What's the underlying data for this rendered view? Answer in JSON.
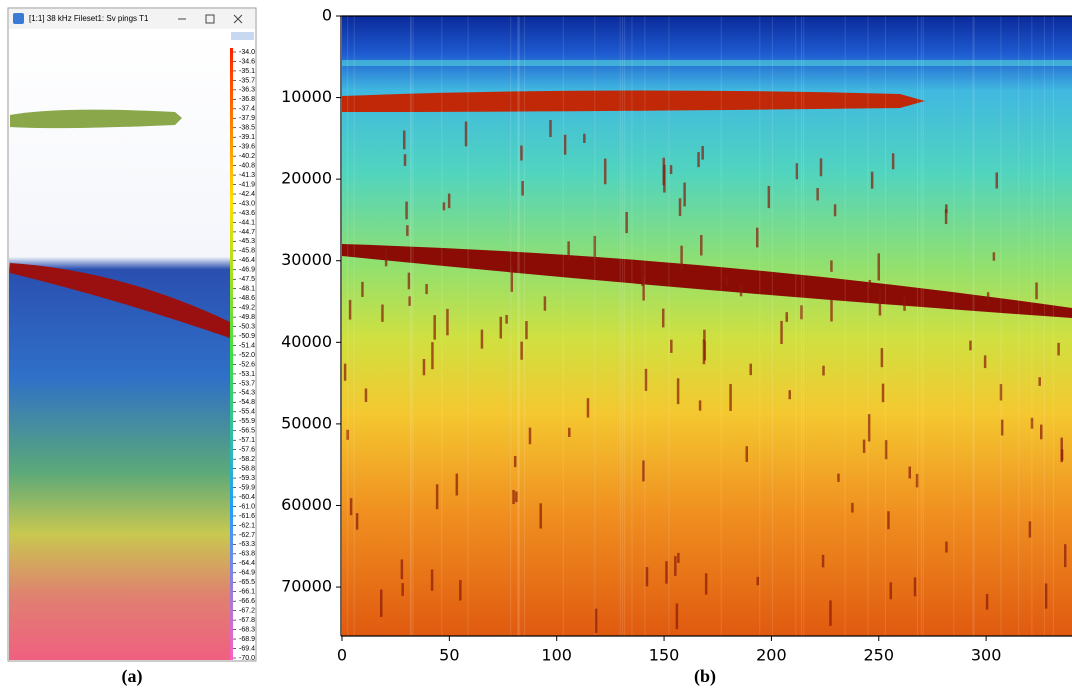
{
  "panel_a": {
    "window_title": "[1:1] 38 kHz Fileset1: Sv pings T1",
    "scale_labels": [
      "-34.0",
      "-34.6",
      "-35.1",
      "-35.7",
      "-36.3",
      "-36.8",
      "-37.4",
      "-37.9",
      "-38.5",
      "-39.1",
      "-39.6",
      "-40.2",
      "-40.8",
      "-41.3",
      "-41.9",
      "-42.4",
      "-43.0",
      "-43.6",
      "-44.1",
      "-44.7",
      "-45.3",
      "-45.8",
      "-46.4",
      "-46.9",
      "-47.5",
      "-48.1",
      "-48.6",
      "-49.2",
      "-49.8",
      "-50.3",
      "-50.9",
      "-51.4",
      "-52.0",
      "-52.6",
      "-53.1",
      "-53.7",
      "-54.3",
      "-54.8",
      "-55.4",
      "-55.9",
      "-56.5",
      "-57.1",
      "-57.6",
      "-58.2",
      "-58.8",
      "-59.3",
      "-59.9",
      "-60.4",
      "-61.0",
      "-61.6",
      "-62.1",
      "-62.7",
      "-63.3",
      "-63.8",
      "-64.4",
      "-64.9",
      "-65.5",
      "-66.1",
      "-66.6",
      "-67.2",
      "-67.8",
      "-68.3",
      "-68.9",
      "-69.4",
      "-70.0"
    ],
    "caption": "(a)"
  },
  "chart_data": {
    "type": "heatmap",
    "caption": "(b)",
    "xlim": [
      0,
      340
    ],
    "xticks": [
      0,
      50,
      100,
      150,
      200,
      250,
      300
    ],
    "ylim": [
      0,
      76000
    ],
    "yticks": [
      0,
      10000,
      20000,
      30000,
      40000,
      50000,
      60000,
      70000
    ],
    "y_inverted": true
  }
}
